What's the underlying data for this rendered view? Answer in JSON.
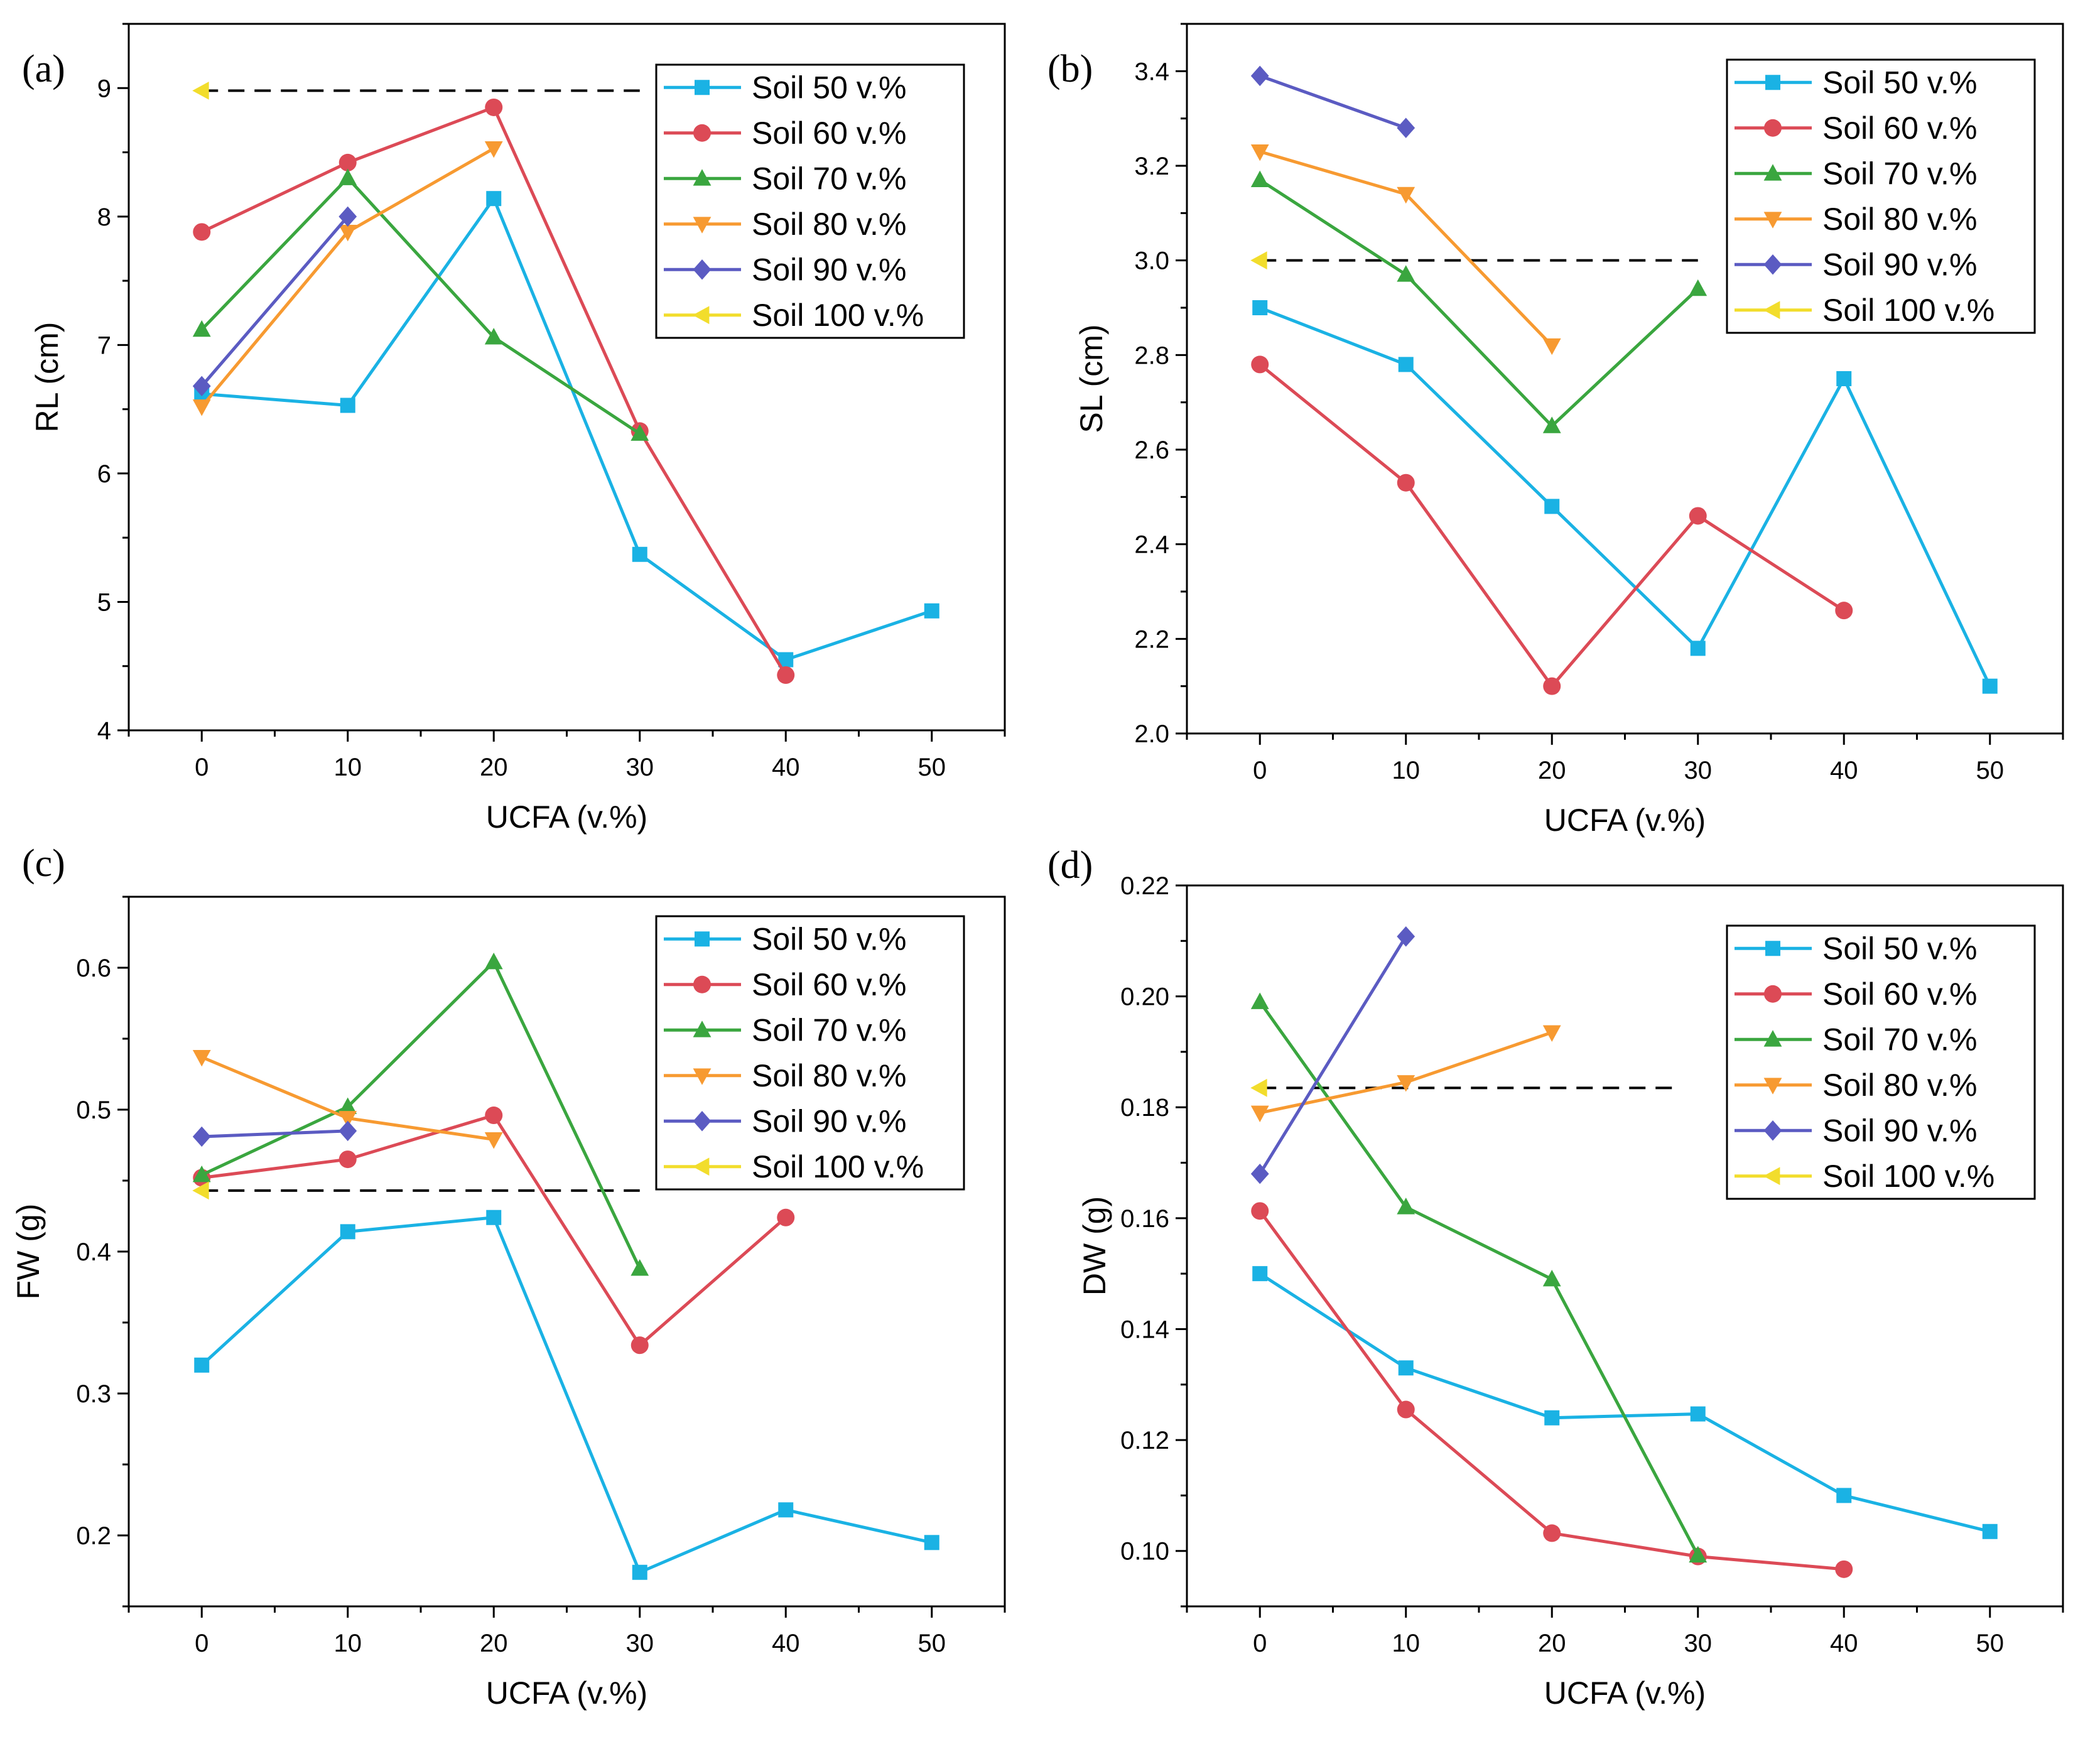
{
  "series_meta": [
    {
      "name": "Soil 50 v.%",
      "color": "#1ab2e4",
      "marker": "square"
    },
    {
      "name": "Soil 60 v.%",
      "color": "#dc4a56",
      "marker": "circle"
    },
    {
      "name": "Soil 70 v.%",
      "color": "#3aa63f",
      "marker": "triangle-up"
    },
    {
      "name": "Soil 80 v.%",
      "color": "#f79a31",
      "marker": "triangle-down"
    },
    {
      "name": "Soil 90 v.%",
      "color": "#5b5bc2",
      "marker": "diamond"
    },
    {
      "name": "Soil 100 v.%",
      "color": "#f2dd2c",
      "marker": "triangle-left"
    }
  ],
  "chart_data": [
    {
      "type": "line",
      "panel_label": "(a)",
      "xlabel": "UCFA (v.%)",
      "ylabel": "RL (cm)",
      "xlim": [
        -5,
        55
      ],
      "ylim": [
        4,
        9.5
      ],
      "xticks": [
        0,
        10,
        20,
        30,
        40,
        50
      ],
      "yticks": [
        4,
        5,
        6,
        7,
        8,
        9
      ],
      "legend_position": "top-right",
      "reference_line": {
        "y": 8.98,
        "x_range": [
          0,
          30
        ]
      },
      "series": [
        {
          "name": "Soil 50 v.%",
          "x": [
            0,
            10,
            20,
            30,
            40,
            50
          ],
          "values": [
            6.62,
            6.53,
            8.14,
            5.37,
            4.55,
            4.93
          ]
        },
        {
          "name": "Soil 60 v.%",
          "x": [
            0,
            10,
            20,
            30,
            40
          ],
          "values": [
            7.88,
            8.42,
            8.85,
            6.33,
            4.43
          ]
        },
        {
          "name": "Soil 70 v.%",
          "x": [
            0,
            10,
            20,
            30
          ],
          "values": [
            7.12,
            8.3,
            7.06,
            6.31
          ]
        },
        {
          "name": "Soil 80 v.%",
          "x": [
            0,
            10,
            20
          ],
          "values": [
            6.52,
            7.88,
            8.53
          ]
        },
        {
          "name": "Soil 90 v.%",
          "x": [
            0,
            10
          ],
          "values": [
            6.68,
            8.0
          ]
        },
        {
          "name": "Soil 100 v.%",
          "x": [
            0
          ],
          "values": [
            8.98
          ]
        }
      ]
    },
    {
      "type": "line",
      "panel_label": "(b)",
      "xlabel": "UCFA (v.%)",
      "ylabel": "SL (cm)",
      "xlim": [
        -5,
        55
      ],
      "ylim": [
        2.0,
        3.5
      ],
      "xticks": [
        0,
        10,
        20,
        30,
        40,
        50
      ],
      "yticks": [
        2.0,
        2.2,
        2.4,
        2.6,
        2.8,
        3.0,
        3.2,
        3.4
      ],
      "legend_position": "top-right",
      "reference_line": {
        "y": 3.0,
        "x_range": [
          0,
          30
        ]
      },
      "series": [
        {
          "name": "Soil 50 v.%",
          "x": [
            0,
            10,
            20,
            30,
            40,
            50
          ],
          "values": [
            2.9,
            2.78,
            2.48,
            2.18,
            2.75,
            2.1
          ]
        },
        {
          "name": "Soil 60 v.%",
          "x": [
            0,
            10,
            20,
            30,
            40
          ],
          "values": [
            2.78,
            2.53,
            2.1,
            2.46,
            2.26
          ]
        },
        {
          "name": "Soil 70 v.%",
          "x": [
            0,
            10,
            20,
            30
          ],
          "values": [
            3.17,
            2.97,
            2.65,
            2.94
          ]
        },
        {
          "name": "Soil 80 v.%",
          "x": [
            0,
            10,
            20
          ],
          "values": [
            3.23,
            3.14,
            2.82
          ]
        },
        {
          "name": "Soil 90 v.%",
          "x": [
            0,
            10
          ],
          "values": [
            3.39,
            3.28
          ]
        },
        {
          "name": "Soil 100 v.%",
          "x": [
            0
          ],
          "values": [
            3.0
          ]
        }
      ]
    },
    {
      "type": "line",
      "panel_label": "(c)",
      "xlabel": "UCFA (v.%)",
      "ylabel": "FW (g)",
      "xlim": [
        -5,
        55
      ],
      "ylim": [
        0.15,
        0.65
      ],
      "xticks": [
        0,
        10,
        20,
        30,
        40,
        50
      ],
      "yticks": [
        0.2,
        0.3,
        0.4,
        0.5,
        0.6
      ],
      "legend_position": "top-right",
      "reference_line": {
        "y": 0.443,
        "x_range": [
          0,
          30
        ]
      },
      "series": [
        {
          "name": "Soil 50 v.%",
          "x": [
            0,
            10,
            20,
            30,
            40,
            50
          ],
          "values": [
            0.32,
            0.414,
            0.424,
            0.174,
            0.218,
            0.195
          ]
        },
        {
          "name": "Soil 60 v.%",
          "x": [
            0,
            10,
            20,
            30,
            40
          ],
          "values": [
            0.452,
            0.465,
            0.496,
            0.334,
            0.424
          ]
        },
        {
          "name": "Soil 70 v.%",
          "x": [
            0,
            10,
            20,
            30
          ],
          "values": [
            0.454,
            0.502,
            0.604,
            0.388
          ]
        },
        {
          "name": "Soil 80 v.%",
          "x": [
            0,
            10,
            20
          ],
          "values": [
            0.537,
            0.494,
            0.479
          ]
        },
        {
          "name": "Soil 90 v.%",
          "x": [
            0,
            10
          ],
          "values": [
            0.481,
            0.485
          ]
        },
        {
          "name": "Soil 100 v.%",
          "x": [
            0
          ],
          "values": [
            0.443
          ]
        }
      ]
    },
    {
      "type": "line",
      "panel_label": "(d)",
      "xlabel": "UCFA (v.%)",
      "ylabel": "DW (g)",
      "xlim": [
        -5,
        55
      ],
      "ylim": [
        0.09,
        0.22
      ],
      "xticks": [
        0,
        10,
        20,
        30,
        40,
        50
      ],
      "yticks": [
        0.1,
        0.12,
        0.14,
        0.16,
        0.18,
        0.2,
        0.22
      ],
      "legend_position": "top-right",
      "reference_line": {
        "y": 0.1835,
        "x_range": [
          0,
          28.5
        ]
      },
      "series": [
        {
          "name": "Soil 50 v.%",
          "x": [
            0,
            10,
            20,
            30,
            40,
            50
          ],
          "values": [
            0.15,
            0.133,
            0.124,
            0.1247,
            0.11,
            0.1035
          ]
        },
        {
          "name": "Soil 60 v.%",
          "x": [
            0,
            10,
            20,
            30,
            40
          ],
          "values": [
            0.1613,
            0.1255,
            0.1032,
            0.099,
            0.0967
          ]
        },
        {
          "name": "Soil 70 v.%",
          "x": [
            0,
            10,
            20,
            30
          ],
          "values": [
            0.199,
            0.162,
            0.149,
            0.0992
          ]
        },
        {
          "name": "Soil 80 v.%",
          "x": [
            0,
            10,
            20
          ],
          "values": [
            0.179,
            0.1845,
            0.1935
          ]
        },
        {
          "name": "Soil 90 v.%",
          "x": [
            0,
            10
          ],
          "values": [
            0.168,
            0.2108
          ]
        },
        {
          "name": "Soil 100 v.%",
          "x": [
            0
          ],
          "values": [
            0.1835
          ]
        }
      ]
    }
  ]
}
